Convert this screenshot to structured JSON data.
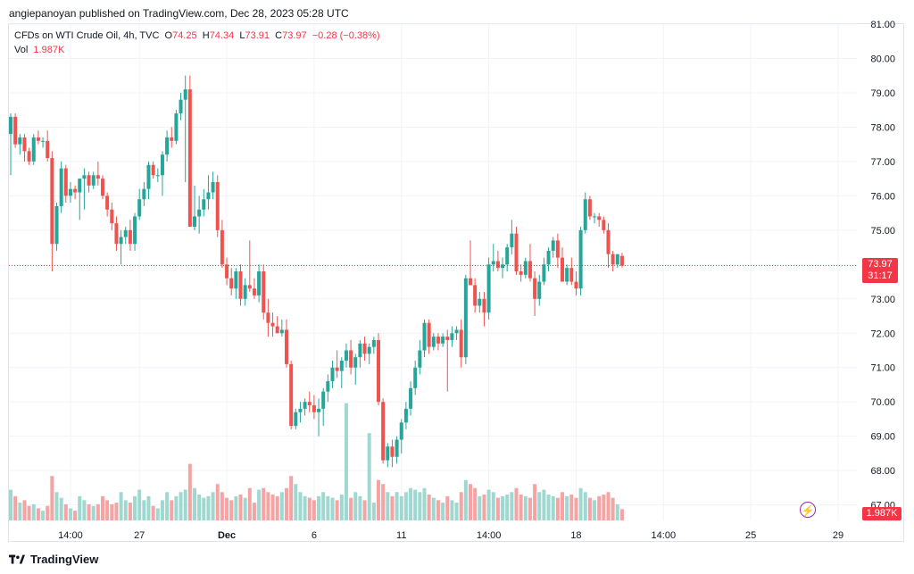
{
  "header": {
    "published_line": "angiepanoyan published on TradingView.com, Dec 28, 2023 05:28 UTC"
  },
  "legend": {
    "symbol": "CFDs on WTI Crude Oil, 4h, TVC",
    "open_label": "O",
    "open": "74.25",
    "high_label": "H",
    "high": "74.34",
    "low_label": "L",
    "low": "73.91",
    "close_label": "C",
    "close": "73.97",
    "change": "−0.28 (−0.38%)",
    "vol_label": "Vol",
    "vol": "1.987K"
  },
  "badges": {
    "last_price": "73.97",
    "countdown": "31:17",
    "last_volume": "1.987K"
  },
  "footer": {
    "brand": "TradingView"
  },
  "colors": {
    "up": "#26a69a",
    "down": "#ef5350",
    "vol_up": "#9ed8d0",
    "vol_down": "#f5a3a3",
    "grid": "#f0f3fa",
    "price_line": "#f23645"
  },
  "chart_data": {
    "type": "candlestick",
    "title": "CFDs on WTI Crude Oil, 4h, TVC",
    "ylim": [
      66.6,
      81.0
    ],
    "y_ticks": [
      "81.00",
      "80.00",
      "79.00",
      "78.00",
      "77.00",
      "76.00",
      "75.00",
      "74.00",
      "73.00",
      "72.00",
      "71.00",
      "70.00",
      "69.00",
      "68.00",
      "67.00"
    ],
    "x_ticks": [
      {
        "i": 13,
        "label": "14:00"
      },
      {
        "i": 28,
        "label": "27"
      },
      {
        "i": 47,
        "label": "Dec"
      },
      {
        "i": 66,
        "label": "6"
      },
      {
        "i": 85,
        "label": "11"
      },
      {
        "i": 104,
        "label": "14:00"
      },
      {
        "i": 123,
        "label": "18"
      },
      {
        "i": 142,
        "label": "14:00"
      },
      {
        "i": 161,
        "label": "25"
      },
      {
        "i": 180,
        "label": "29"
      }
    ],
    "grid": true,
    "last_price": 73.97,
    "candles": [
      [
        77.8,
        78.4,
        76.6,
        78.3,
        38
      ],
      [
        78.3,
        78.4,
        77.4,
        77.5,
        30
      ],
      [
        77.5,
        77.8,
        77.2,
        77.7,
        22
      ],
      [
        77.7,
        77.8,
        77.0,
        77.3,
        25
      ],
      [
        77.3,
        77.4,
        76.9,
        77.0,
        18
      ],
      [
        77.0,
        77.8,
        76.9,
        77.7,
        20
      ],
      [
        77.7,
        77.9,
        77.5,
        77.6,
        15
      ],
      [
        77.6,
        77.7,
        77.4,
        77.6,
        12
      ],
      [
        77.6,
        77.9,
        77.0,
        77.1,
        18
      ],
      [
        77.1,
        77.3,
        73.8,
        74.6,
        55
      ],
      [
        74.6,
        75.8,
        74.4,
        75.7,
        35
      ],
      [
        75.7,
        77.0,
        75.5,
        76.8,
        28
      ],
      [
        76.8,
        76.9,
        75.8,
        76.0,
        20
      ],
      [
        76.0,
        76.4,
        75.8,
        76.2,
        15
      ],
      [
        76.2,
        76.3,
        75.9,
        76.1,
        12
      ],
      [
        76.1,
        76.4,
        75.3,
        76.5,
        30
      ],
      [
        76.5,
        76.8,
        75.6,
        76.6,
        25
      ],
      [
        76.6,
        76.7,
        76.1,
        76.3,
        20
      ],
      [
        76.3,
        76.7,
        76.2,
        76.6,
        18
      ],
      [
        76.6,
        77.0,
        76.3,
        76.5,
        20
      ],
      [
        76.5,
        76.6,
        75.9,
        76.0,
        30
      ],
      [
        76.0,
        76.1,
        75.4,
        75.6,
        25
      ],
      [
        75.6,
        75.8,
        75.0,
        75.2,
        20
      ],
      [
        75.2,
        75.4,
        74.4,
        74.6,
        22
      ],
      [
        74.6,
        75.0,
        74.0,
        74.8,
        35
      ],
      [
        74.8,
        75.1,
        74.6,
        75.0,
        25
      ],
      [
        75.0,
        75.3,
        74.4,
        74.6,
        22
      ],
      [
        74.6,
        75.5,
        74.4,
        75.4,
        30
      ],
      [
        75.4,
        76.2,
        75.3,
        75.9,
        38
      ],
      [
        75.9,
        76.4,
        75.7,
        76.2,
        25
      ],
      [
        76.2,
        77.0,
        75.9,
        76.9,
        30
      ],
      [
        76.9,
        77.0,
        76.5,
        76.6,
        18
      ],
      [
        76.6,
        76.8,
        76.4,
        76.6,
        15
      ],
      [
        76.6,
        77.3,
        76.0,
        77.2,
        25
      ],
      [
        77.2,
        77.9,
        77.0,
        77.7,
        35
      ],
      [
        77.7,
        78.0,
        77.4,
        77.6,
        25
      ],
      [
        77.6,
        78.5,
        77.5,
        78.4,
        30
      ],
      [
        78.4,
        79.0,
        78.2,
        78.8,
        35
      ],
      [
        78.8,
        79.5,
        76.4,
        79.1,
        38
      ],
      [
        79.1,
        79.5,
        75.1,
        75.1,
        70
      ],
      [
        75.1,
        76.3,
        75.0,
        75.4,
        40
      ],
      [
        75.4,
        76.0,
        74.9,
        75.6,
        32
      ],
      [
        75.6,
        76.2,
        75.4,
        75.9,
        28
      ],
      [
        75.9,
        76.6,
        75.6,
        76.1,
        30
      ],
      [
        76.1,
        76.7,
        75.9,
        76.4,
        35
      ],
      [
        76.4,
        76.6,
        74.8,
        75.0,
        45
      ],
      [
        75.0,
        75.3,
        73.9,
        74.0,
        35
      ],
      [
        74.0,
        74.2,
        73.4,
        73.6,
        28
      ],
      [
        73.6,
        73.9,
        73.1,
        73.3,
        25
      ],
      [
        73.3,
        73.9,
        73.0,
        73.8,
        30
      ],
      [
        73.8,
        74.0,
        72.8,
        73.0,
        32
      ],
      [
        73.0,
        73.6,
        72.8,
        73.4,
        28
      ],
      [
        73.4,
        74.7,
        73.2,
        73.3,
        40
      ],
      [
        73.3,
        73.6,
        73.0,
        73.1,
        22
      ],
      [
        73.1,
        74.0,
        72.9,
        73.8,
        38
      ],
      [
        73.8,
        74.0,
        72.4,
        72.6,
        40
      ],
      [
        72.6,
        73.0,
        71.9,
        72.3,
        35
      ],
      [
        72.3,
        72.6,
        71.9,
        72.2,
        32
      ],
      [
        72.2,
        72.5,
        72.0,
        72.0,
        30
      ],
      [
        72.0,
        72.4,
        71.9,
        72.1,
        35
      ],
      [
        72.1,
        72.4,
        71.0,
        71.1,
        40
      ],
      [
        71.1,
        71.2,
        69.2,
        69.3,
        55
      ],
      [
        69.3,
        69.8,
        69.2,
        69.7,
        45
      ],
      [
        69.7,
        70.0,
        69.4,
        69.8,
        35
      ],
      [
        69.8,
        70.1,
        69.6,
        70.0,
        30
      ],
      [
        70.0,
        70.3,
        69.7,
        69.9,
        28
      ],
      [
        69.9,
        70.2,
        69.5,
        69.7,
        25
      ],
      [
        69.7,
        70.1,
        69.0,
        69.8,
        30
      ],
      [
        69.8,
        70.4,
        69.3,
        70.3,
        35
      ],
      [
        70.3,
        70.8,
        70.0,
        70.6,
        30
      ],
      [
        70.6,
        71.2,
        70.4,
        71.0,
        28
      ],
      [
        71.0,
        71.5,
        70.7,
        70.9,
        25
      ],
      [
        70.9,
        71.3,
        70.4,
        71.2,
        32
      ],
      [
        71.2,
        71.7,
        71.0,
        71.5,
        30
      ],
      [
        71.5,
        71.8,
        70.8,
        71.0,
        28
      ],
      [
        71.0,
        71.4,
        70.5,
        71.3,
        35
      ],
      [
        71.3,
        71.8,
        71.0,
        71.7,
        30
      ],
      [
        71.7,
        71.9,
        71.2,
        71.4,
        25
      ],
      [
        71.4,
        71.7,
        71.1,
        71.6,
        20
      ],
      [
        71.6,
        71.9,
        71.4,
        71.8,
        22
      ],
      [
        71.8,
        72.0,
        69.9,
        70.0,
        50
      ],
      [
        70.0,
        70.1,
        68.2,
        68.3,
        45
      ],
      [
        68.3,
        68.8,
        68.1,
        68.7,
        35
      ],
      [
        68.7,
        68.9,
        68.1,
        68.4,
        30
      ],
      [
        68.4,
        69.0,
        68.2,
        68.9,
        35
      ],
      [
        68.9,
        69.5,
        68.5,
        69.4,
        30
      ],
      [
        69.4,
        70.0,
        69.2,
        69.8,
        35
      ],
      [
        69.8,
        70.6,
        69.6,
        70.4,
        40
      ],
      [
        70.4,
        71.2,
        70.2,
        71.0,
        38
      ],
      [
        71.0,
        71.8,
        70.8,
        71.5,
        35
      ],
      [
        71.5,
        72.4,
        71.3,
        72.3,
        40
      ],
      [
        72.3,
        72.4,
        71.4,
        71.6,
        32
      ],
      [
        71.6,
        72.0,
        71.5,
        71.9,
        28
      ],
      [
        71.9,
        72.0,
        71.5,
        71.7,
        25
      ],
      [
        71.7,
        72.0,
        71.6,
        71.9,
        22
      ],
      [
        71.9,
        72.1,
        70.3,
        71.8,
        30
      ],
      [
        71.8,
        72.2,
        71.6,
        72.0,
        25
      ],
      [
        72.0,
        72.2,
        71.8,
        72.1,
        22
      ],
      [
        72.1,
        72.4,
        71.0,
        71.3,
        35
      ],
      [
        71.3,
        73.7,
        71.1,
        73.6,
        50
      ],
      [
        73.6,
        74.7,
        73.4,
        73.4,
        45
      ],
      [
        73.4,
        73.6,
        72.6,
        72.8,
        40
      ],
      [
        72.8,
        73.2,
        72.6,
        73.0,
        30
      ],
      [
        73.0,
        73.2,
        72.2,
        72.6,
        32
      ],
      [
        72.6,
        74.2,
        72.4,
        74.0,
        38
      ],
      [
        74.0,
        74.6,
        73.8,
        74.1,
        35
      ],
      [
        74.1,
        74.4,
        73.8,
        73.9,
        28
      ],
      [
        73.9,
        74.2,
        73.6,
        74.0,
        30
      ],
      [
        74.0,
        74.6,
        73.8,
        74.5,
        32
      ],
      [
        74.5,
        75.3,
        74.3,
        74.9,
        35
      ],
      [
        74.9,
        75.1,
        73.7,
        73.8,
        40
      ],
      [
        73.8,
        74.0,
        73.5,
        73.7,
        32
      ],
      [
        73.7,
        74.2,
        73.6,
        74.1,
        30
      ],
      [
        74.1,
        74.6,
        73.5,
        73.6,
        28
      ],
      [
        73.6,
        73.8,
        72.5,
        73.0,
        45
      ],
      [
        73.0,
        73.7,
        72.8,
        73.5,
        35
      ],
      [
        73.5,
        74.2,
        73.4,
        74.0,
        38
      ],
      [
        74.0,
        74.5,
        73.8,
        74.4,
        32
      ],
      [
        74.4,
        74.8,
        74.2,
        74.7,
        30
      ],
      [
        74.7,
        74.9,
        73.9,
        74.2,
        28
      ],
      [
        74.2,
        74.5,
        73.6,
        73.5,
        35
      ],
      [
        73.5,
        74.0,
        73.4,
        73.9,
        30
      ],
      [
        73.9,
        74.2,
        73.4,
        73.5,
        32
      ],
      [
        73.5,
        73.8,
        73.1,
        73.3,
        28
      ],
      [
        73.3,
        75.1,
        73.1,
        75.0,
        40
      ],
      [
        75.0,
        76.1,
        74.9,
        75.9,
        35
      ],
      [
        75.9,
        76.0,
        75.3,
        75.4,
        28
      ],
      [
        75.4,
        75.5,
        75.2,
        75.4,
        25
      ],
      [
        75.4,
        75.5,
        75.1,
        75.3,
        30
      ],
      [
        75.3,
        75.4,
        74.9,
        75.0,
        32
      ],
      [
        75.0,
        75.2,
        73.9,
        74.3,
        35
      ],
      [
        74.3,
        74.4,
        73.8,
        74.0,
        28
      ],
      [
        74.0,
        74.3,
        73.9,
        74.3,
        20
      ],
      [
        74.25,
        74.34,
        73.91,
        73.97,
        14
      ]
    ]
  }
}
